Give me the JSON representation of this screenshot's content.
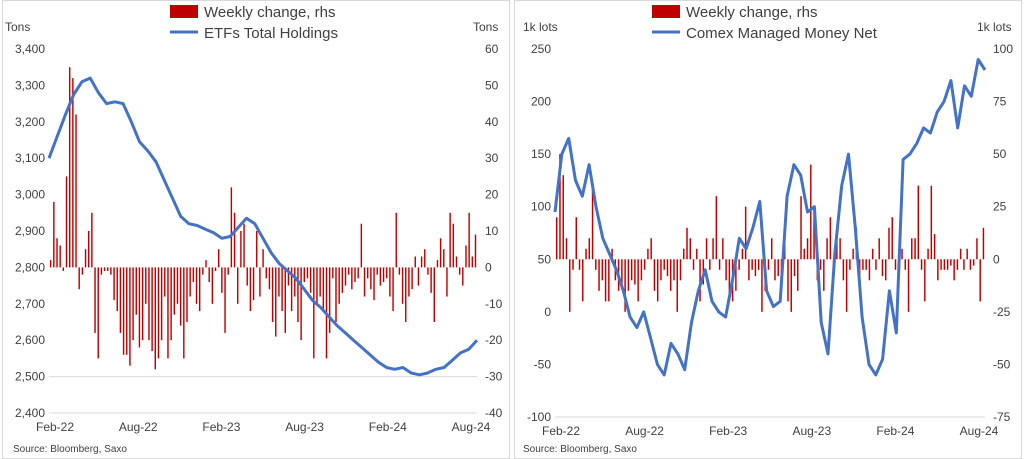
{
  "colors": {
    "bar": "#c00000",
    "line": "#4472c4",
    "grid": "#d9d9d9",
    "text": "#404040"
  },
  "chart_data": [
    {
      "type": "bar+line",
      "left_unit": "Tons",
      "right_unit": "Tons",
      "legend": [
        "Weekly change, rhs",
        "ETFs Total Holdings"
      ],
      "source": "Source: Bloomberg, Saxo",
      "left_axis": {
        "min": 2400,
        "max": 3400,
        "ticks": [
          "2,400",
          "2,500",
          "2,600",
          "2,700",
          "2,800",
          "2,900",
          "3,000",
          "3,100",
          "3,200",
          "3,300",
          "3,400"
        ]
      },
      "right_axis": {
        "min": -40,
        "max": 60,
        "ticks": [
          "-40",
          "-30",
          "-20",
          "-10",
          "0",
          "10",
          "20",
          "30",
          "40",
          "50",
          "60"
        ]
      },
      "x_ticks": [
        "Feb-22",
        "Aug-22",
        "Feb-23",
        "Aug-23",
        "Feb-24",
        "Aug-24"
      ],
      "x_range": [
        "2022-02",
        "2024-09"
      ],
      "bars_rhs": [
        2,
        18,
        8,
        6,
        -1,
        25,
        55,
        52,
        42,
        -6,
        -2,
        5,
        10,
        15,
        -18,
        -25,
        -2,
        -1,
        -1,
        -2,
        -9,
        -12,
        -18,
        -24,
        -24,
        -27,
        -20,
        -13,
        -22,
        -20,
        -10,
        -20,
        -23,
        -28,
        -25,
        -20,
        -8,
        -25,
        -20,
        -13,
        -10,
        -16,
        -25,
        -15,
        -8,
        -4,
        -10,
        -12,
        -2,
        2,
        -4,
        -10,
        -1,
        5,
        -7,
        -18,
        -2,
        22,
        15,
        -10,
        10,
        12,
        -5,
        -12,
        -9,
        10,
        -8,
        5,
        -3,
        -6,
        -15,
        -19,
        -8,
        -12,
        -18,
        -5,
        -12,
        -8,
        -15,
        -20,
        -4,
        -3,
        -7,
        -25,
        -10,
        -8,
        -12,
        -25,
        -18,
        -3,
        -15,
        -10,
        -7,
        -5,
        -2,
        -6,
        -4,
        -3,
        12,
        -8,
        -3,
        -6,
        -9,
        -2,
        -5,
        -4,
        -3,
        -8,
        -12,
        15,
        -2,
        -10,
        -15,
        -8,
        -6,
        3,
        -5,
        3,
        5,
        -2,
        -7,
        -15,
        2,
        8,
        5,
        -8,
        15,
        12,
        3,
        -2,
        -5,
        6,
        15,
        3,
        9
      ],
      "line_lhs": [
        3100,
        3160,
        3220,
        3275,
        3310,
        3320,
        3280,
        3250,
        3255,
        3250,
        3200,
        3145,
        3120,
        3090,
        3040,
        2990,
        2940,
        2920,
        2915,
        2905,
        2895,
        2880,
        2885,
        2910,
        2935,
        2920,
        2880,
        2840,
        2810,
        2790,
        2770,
        2740,
        2710,
        2690,
        2665,
        2640,
        2620,
        2600,
        2580,
        2560,
        2540,
        2525,
        2520,
        2525,
        2510,
        2505,
        2510,
        2520,
        2525,
        2545,
        2565,
        2575,
        2600
      ]
    },
    {
      "type": "bar+line",
      "left_unit": "1k lots",
      "right_unit": "1k lots",
      "legend": [
        "Weekly change, rhs",
        "Comex Managed Money Net"
      ],
      "source": "Source: Bloomberg, Saxo",
      "left_axis": {
        "min": -100,
        "max": 250,
        "ticks": [
          "-100",
          "-50",
          "0",
          "50",
          "100",
          "150",
          "200",
          "250"
        ]
      },
      "right_axis": {
        "min": -75,
        "max": 100,
        "ticks": [
          "-75",
          "-50",
          "-25",
          "0",
          "25",
          "50",
          "75",
          "100"
        ]
      },
      "x_ticks": [
        "Feb-22",
        "Aug-22",
        "Feb-23",
        "Aug-23",
        "Feb-24",
        "Aug-24"
      ],
      "x_range": [
        "2022-02",
        "2024-09"
      ],
      "bars_rhs": [
        20,
        50,
        40,
        10,
        -25,
        -5,
        20,
        -5,
        -20,
        5,
        10,
        35,
        -5,
        -15,
        -10,
        -20,
        -20,
        5,
        -10,
        -15,
        -12,
        -25,
        -15,
        -10,
        -12,
        -20,
        -10,
        -5,
        5,
        10,
        -15,
        -20,
        -10,
        -5,
        -8,
        -15,
        -10,
        -25,
        -10,
        5,
        15,
        10,
        -5,
        5,
        -20,
        -12,
        10,
        -5,
        10,
        30,
        -5,
        10,
        -10,
        -20,
        -20,
        -15,
        -5,
        5,
        25,
        -10,
        -5,
        -8,
        -5,
        -25,
        -15,
        -5,
        10,
        -10,
        -8,
        -12,
        10,
        -20,
        -25,
        -8,
        -15,
        30,
        5,
        10,
        45,
        25,
        -10,
        -5,
        -15,
        10,
        20,
        -5,
        15,
        10,
        -10,
        -25,
        -5,
        5,
        15,
        -10,
        -5,
        -5,
        -10,
        5,
        -5,
        10,
        -8,
        -10,
        15,
        20,
        -5,
        -10,
        5,
        -5,
        -25,
        10,
        10,
        35,
        -5,
        -20,
        5,
        35,
        12,
        -10,
        -5,
        -5,
        -5,
        -3,
        -10,
        -5,
        5,
        -5,
        5,
        -5,
        -3,
        10,
        -20,
        15
      ],
      "line_lhs": [
        95,
        150,
        165,
        125,
        110,
        140,
        100,
        70,
        55,
        40,
        20,
        -5,
        -15,
        0,
        -25,
        -50,
        -60,
        -30,
        -40,
        -55,
        -10,
        20,
        40,
        10,
        0,
        -5,
        30,
        70,
        60,
        80,
        105,
        20,
        5,
        10,
        110,
        140,
        130,
        95,
        100,
        -10,
        -40,
        55,
        120,
        150,
        80,
        -5,
        -50,
        -60,
        -45,
        20,
        -20,
        145,
        150,
        160,
        175,
        170,
        190,
        200,
        220,
        175,
        215,
        205,
        240,
        230
      ]
    }
  ]
}
